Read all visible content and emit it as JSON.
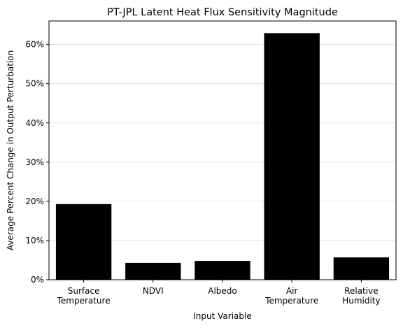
{
  "chart_data": {
    "type": "bar",
    "title": "PT-JPL Latent Heat Flux Sensitivity Magnitude",
    "xlabel": "Input Variable",
    "ylabel": "Average Percent Change in Output Perturbation",
    "categories": [
      [
        "Surface",
        "Temperature"
      ],
      [
        "NDVI"
      ],
      [
        "Albedo"
      ],
      [
        "Air",
        "Temperature"
      ],
      [
        "Relative",
        "Humidity"
      ]
    ],
    "values": [
      19.3,
      4.3,
      4.8,
      62.9,
      5.7
    ],
    "ylim": [
      0,
      66
    ],
    "yticks": [
      0,
      10,
      20,
      30,
      40,
      50,
      60
    ],
    "ytick_labels": [
      "0%",
      "10%",
      "20%",
      "30%",
      "40%",
      "50%",
      "60%"
    ],
    "bar_color": "#000000",
    "grid": "horizontal",
    "legend": "none"
  }
}
